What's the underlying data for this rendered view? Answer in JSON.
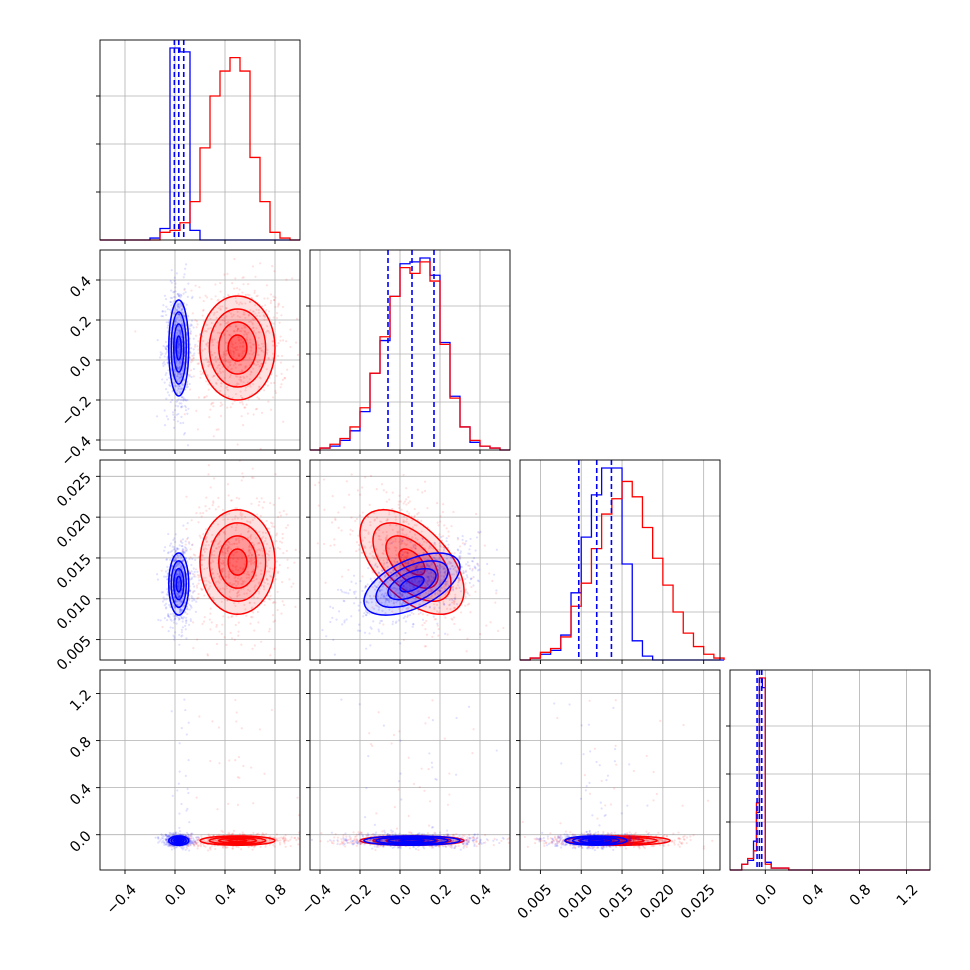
{
  "chart_data": {
    "type": "corner",
    "series": [
      {
        "name": "",
        "color": "#0000ff",
        "color_key": "blue"
      },
      {
        "name": "",
        "color": "#ff0000",
        "color_key": "red"
      }
    ],
    "params": [
      {
        "range": [
          -0.6,
          1.0
        ],
        "ticks": [
          -0.4,
          0.0,
          0.4,
          0.8
        ],
        "tick_labels": [
          "−0.4",
          "0.0",
          "0.4",
          "0.8"
        ]
      },
      {
        "range": [
          -0.45,
          0.55
        ],
        "ticks": [
          -0.4,
          -0.2,
          0.0,
          0.2,
          0.4
        ],
        "tick_labels": [
          "−0.4",
          "−0.2",
          "0.0",
          "0.2",
          "0.4"
        ]
      },
      {
        "range": [
          0.0025,
          0.027
        ],
        "ticks": [
          0.005,
          0.01,
          0.015,
          0.02,
          0.025
        ],
        "tick_labels": [
          "0.005",
          "0.010",
          "0.015",
          "0.020",
          "0.025"
        ]
      },
      {
        "range": [
          -0.3,
          1.4
        ],
        "ticks": [
          0.0,
          0.4,
          0.8,
          1.2
        ],
        "tick_labels": [
          "0.0",
          "0.4",
          "0.8",
          "1.2"
        ]
      }
    ],
    "histograms": [
      {
        "edges": [
          -0.6,
          -0.52,
          -0.44,
          -0.36,
          -0.28,
          -0.2,
          -0.12,
          -0.04,
          0.04,
          0.12,
          0.2,
          0.28,
          0.36,
          0.44,
          0.52,
          0.6,
          0.68,
          0.76,
          0.84,
          0.92,
          1.0
        ],
        "blue": [
          0,
          0,
          0,
          0,
          0,
          0.01,
          0.06,
          1.0,
          0.98,
          0.05,
          0,
          0,
          0,
          0,
          0,
          0,
          0,
          0,
          0,
          0
        ],
        "red": [
          0,
          0,
          0,
          0,
          0,
          0,
          0.04,
          0.05,
          0.09,
          0.2,
          0.48,
          0.75,
          0.88,
          0.95,
          0.88,
          0.43,
          0.2,
          0.04,
          0.01,
          0
        ],
        "quantiles_blue": [
          -0.005,
          0.03,
          0.07
        ],
        "quantiles_red": []
      },
      {
        "edges": [
          -0.45,
          -0.4,
          -0.35,
          -0.3,
          -0.25,
          -0.2,
          -0.15,
          -0.1,
          -0.05,
          0.0,
          0.05,
          0.1,
          0.15,
          0.2,
          0.25,
          0.3,
          0.35,
          0.4,
          0.45,
          0.5,
          0.55
        ],
        "blue": [
          0,
          0.01,
          0.02,
          0.05,
          0.1,
          0.2,
          0.4,
          0.57,
          0.8,
          0.97,
          0.98,
          1.0,
          0.91,
          0.56,
          0.28,
          0.12,
          0.04,
          0.02,
          0.01,
          0
        ],
        "red": [
          0,
          0.01,
          0.03,
          0.06,
          0.12,
          0.22,
          0.4,
          0.59,
          0.8,
          0.95,
          0.92,
          0.98,
          0.88,
          0.55,
          0.27,
          0.12,
          0.05,
          0.02,
          0.01,
          0
        ],
        "quantiles_blue": [
          -0.06,
          0.06,
          0.17
        ],
        "quantiles_red": []
      },
      {
        "edges": [
          0.0025,
          0.00375,
          0.005,
          0.00625,
          0.0075,
          0.00875,
          0.01,
          0.01125,
          0.0125,
          0.01375,
          0.015,
          0.01625,
          0.0175,
          0.01875,
          0.02,
          0.02125,
          0.0225,
          0.02375,
          0.025,
          0.02625,
          0.0275
        ],
        "blue": [
          0,
          0.01,
          0.03,
          0.05,
          0.13,
          0.35,
          0.64,
          0.86,
          1.0,
          1.0,
          0.5,
          0.1,
          0.02,
          0,
          0,
          0,
          0,
          0,
          0,
          0
        ],
        "red": [
          0,
          0.01,
          0.04,
          0.06,
          0.12,
          0.28,
          0.4,
          0.58,
          0.76,
          0.84,
          0.93,
          0.85,
          0.69,
          0.53,
          0.39,
          0.25,
          0.14,
          0.07,
          0.03,
          0.01
        ],
        "quantiles_blue": [
          0.0097,
          0.0119,
          0.0137
        ],
        "quantiles_red": []
      },
      {
        "edges": [
          -0.3,
          -0.2,
          -0.15,
          -0.1,
          -0.075,
          -0.05,
          -0.025,
          0.0,
          0.05,
          0.2,
          0.4,
          0.6,
          0.8,
          1.0,
          1.2,
          1.4
        ],
        "blue": [
          0,
          0.03,
          0.05,
          0.15,
          0.3,
          1.0,
          0.95,
          0.04,
          0.01,
          0,
          0,
          0,
          0,
          0,
          0
        ],
        "red": [
          0,
          0.03,
          0.06,
          0.1,
          0.35,
          1.0,
          1.0,
          0.03,
          0.01,
          0,
          0,
          0,
          0,
          0,
          0
        ],
        "quantiles_blue": [
          -0.07,
          -0.05,
          -0.03
        ],
        "quantiles_red": []
      }
    ],
    "distributions": {
      "blue": {
        "mean": [
          0.03,
          0.06,
          0.0118,
          -0.05
        ],
        "std": [
          0.04,
          0.12,
          0.0019,
          0.02
        ],
        "corr12": 0.55,
        "corr01": 0.0
      },
      "red": {
        "mean": [
          0.5,
          0.06,
          0.0145,
          -0.05
        ],
        "std": [
          0.15,
          0.13,
          0.0032,
          0.02
        ],
        "corr12": -0.55,
        "corr01": 0.0
      }
    },
    "contour_sigmas": [
      0.5,
      1.0,
      1.5,
      2.0
    ],
    "grid": true,
    "legend": "none"
  }
}
